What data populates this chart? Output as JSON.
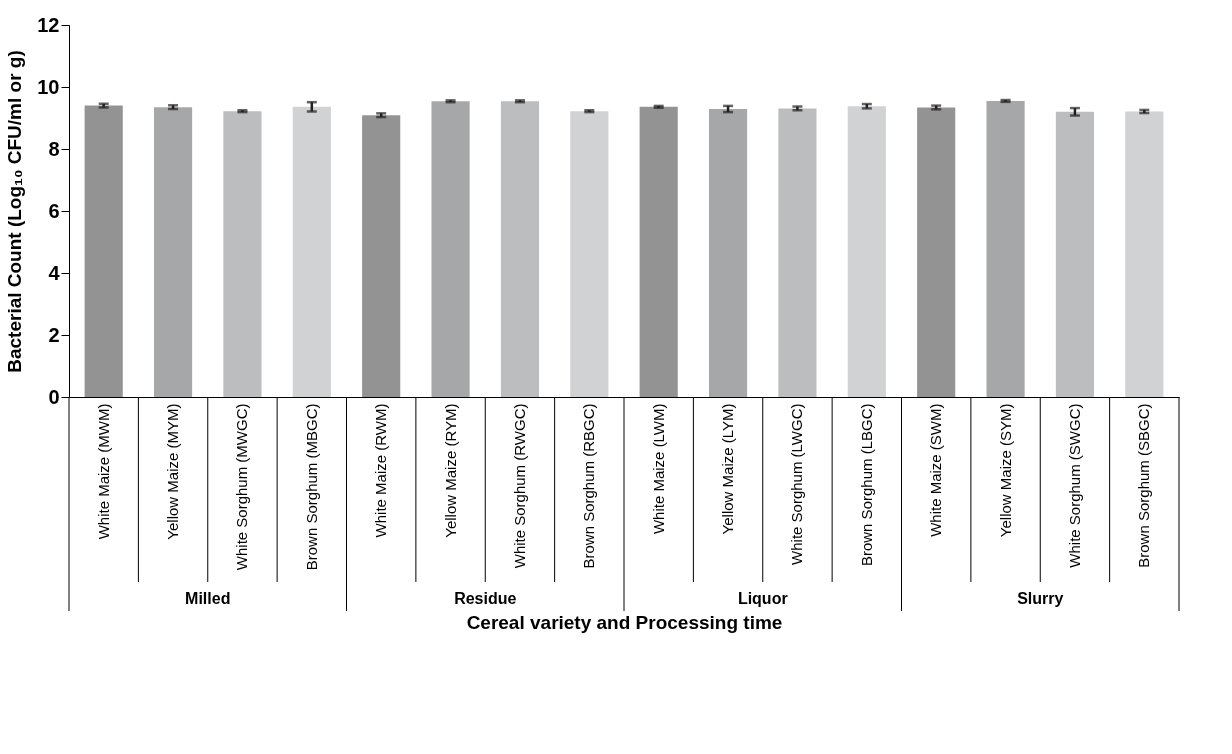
{
  "chart_data": {
    "type": "bar",
    "categories": [
      "White Maize (MWM)",
      "Yellow Maize (MYM)",
      "White Sorghum (MWGC)",
      "Brown Sorghum (MBGC)",
      "White Maize (RWM)",
      "Yellow Maize (RYM)",
      "White Sorghum (RWGC)",
      "Brown Sorghum (RBGC)",
      "White Maize (LWM)",
      "Yellow Maize (LYM)",
      "White Sorghum (LWGC)",
      "Brown Sorghum (LBGC)",
      "White Maize (SWM)",
      "Yellow Maize (SYM)",
      "White Sorghum (SWGC)",
      "Brown Sorghum (SBGC)"
    ],
    "values": [
      9.4,
      9.35,
      9.22,
      9.36,
      9.09,
      9.54,
      9.54,
      9.22,
      9.36,
      9.29,
      9.31,
      9.38,
      9.34,
      9.55,
      9.2,
      9.21
    ],
    "errors": [
      0.06,
      0.06,
      0.03,
      0.15,
      0.06,
      0.03,
      0.03,
      0.03,
      0.03,
      0.1,
      0.06,
      0.07,
      0.06,
      0.03,
      0.12,
      0.05
    ],
    "colors": [
      "#939393",
      "#a6a7a9",
      "#bcbdbf",
      "#d1d2d3",
      "#939393",
      "#a6a7a9",
      "#bcbdbf",
      "#d1d2d3",
      "#939393",
      "#a6a7a9",
      "#bcbdbf",
      "#d1d2d3",
      "#939393",
      "#a6a7a9",
      "#bcbdbf",
      "#d1d2d3"
    ],
    "ylim": [
      0,
      12
    ],
    "yticks": [
      0,
      2,
      4,
      6,
      8,
      10,
      12
    ],
    "ylabel": "Bacterial Count (Log₁₀ CFU/ml or g)",
    "xlabel": "Cereal variety and Processing time",
    "annotations": [
      "Milled",
      "Residue",
      "Liquor",
      "Slurry"
    ],
    "grid": false
  }
}
